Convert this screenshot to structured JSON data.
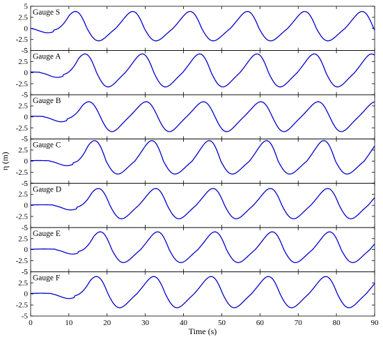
{
  "chart_data": {
    "type": "line",
    "xlabel": "Time (s)",
    "ylabel": "η (m)",
    "xlim": [
      0,
      90
    ],
    "ylim": [
      -5,
      5
    ],
    "x_ticks": [
      0,
      10,
      20,
      30,
      40,
      50,
      60,
      70,
      80,
      90
    ],
    "y_ticks": [
      -5,
      -2.5,
      0,
      2.5,
      5
    ],
    "y_tick_labels": [
      "-5",
      "-2.5",
      "0",
      "2.5",
      "5"
    ],
    "line_color": "#0000cc",
    "grid": false,
    "panels": [
      {
        "name": "Gauge S",
        "delay": 0.0,
        "amp_pos": 3.8,
        "amp_neg": 2.8
      },
      {
        "name": "Gauge A",
        "delay": 2.5,
        "amp_pos": 4.2,
        "amp_neg": 3.2
      },
      {
        "name": "Gauge B",
        "delay": 3.5,
        "amp_pos": 3.4,
        "amp_neg": 3.3
      },
      {
        "name": "Gauge C",
        "delay": 5.0,
        "amp_pos": 4.6,
        "amp_neg": 2.9
      },
      {
        "name": "Gauge D",
        "delay": 6.0,
        "amp_pos": 3.8,
        "amp_neg": 3.0
      },
      {
        "name": "Gauge E",
        "delay": 6.5,
        "amp_pos": 4.0,
        "amp_neg": 2.9
      },
      {
        "name": "Gauge F",
        "delay": 5.5,
        "amp_pos": 3.9,
        "amp_neg": 3.1
      }
    ],
    "wave_period": 15
  }
}
